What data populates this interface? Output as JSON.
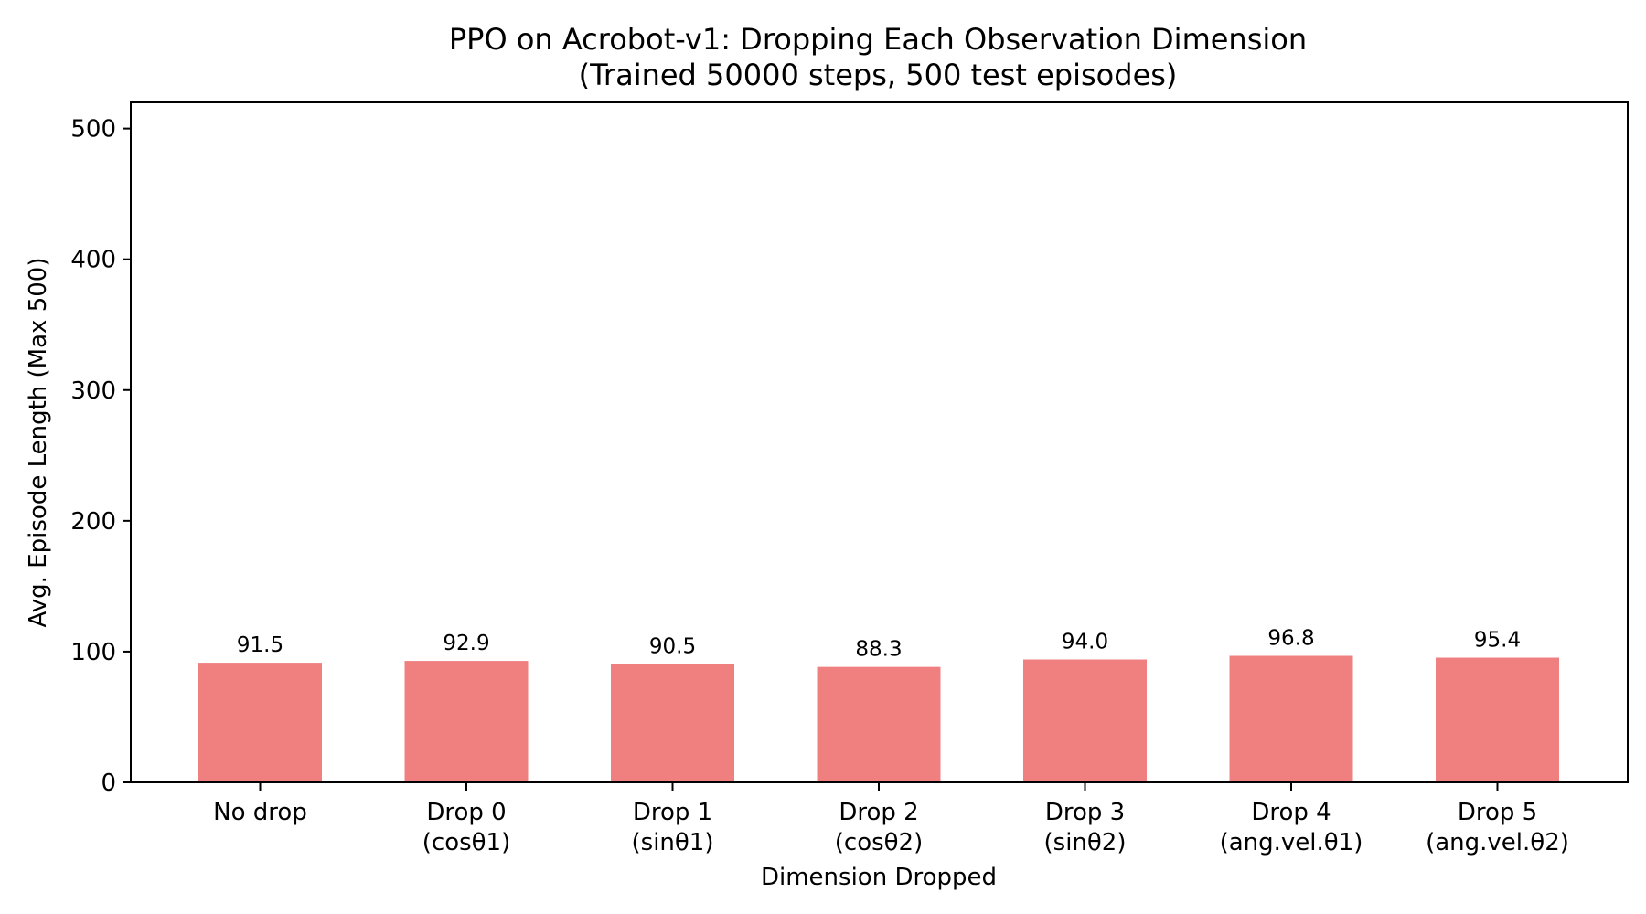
{
  "chart_data": {
    "type": "bar",
    "title": "PPO on Acrobot-v1: Dropping Each Observation Dimension",
    "subtitle": "(Trained 50000 steps, 500 test episodes)",
    "xlabel": "Dimension Dropped",
    "ylabel": "Avg. Episode Length (Max 500)",
    "ylim": [
      0,
      520
    ],
    "yticks": [
      0,
      100,
      200,
      300,
      400,
      500
    ],
    "ytick_labels": [
      "0",
      "100",
      "200",
      "300",
      "400",
      "500"
    ],
    "categories": [
      [
        "No drop"
      ],
      [
        "Drop 0",
        "(cosθ1)"
      ],
      [
        "Drop 1",
        "(sinθ1)"
      ],
      [
        "Drop 2",
        "(cosθ2)"
      ],
      [
        "Drop 3",
        "(sinθ2)"
      ],
      [
        "Drop 4",
        "(ang.vel.θ1)"
      ],
      [
        "Drop 5",
        "(ang.vel.θ2)"
      ]
    ],
    "values": [
      91.5,
      92.9,
      90.5,
      88.3,
      94.0,
      96.8,
      95.4
    ],
    "data_labels": [
      "91.5",
      "92.9",
      "90.5",
      "88.3",
      "94.0",
      "96.8",
      "95.4"
    ],
    "bar_color": "#f08080",
    "grid": false,
    "legend": "none"
  }
}
